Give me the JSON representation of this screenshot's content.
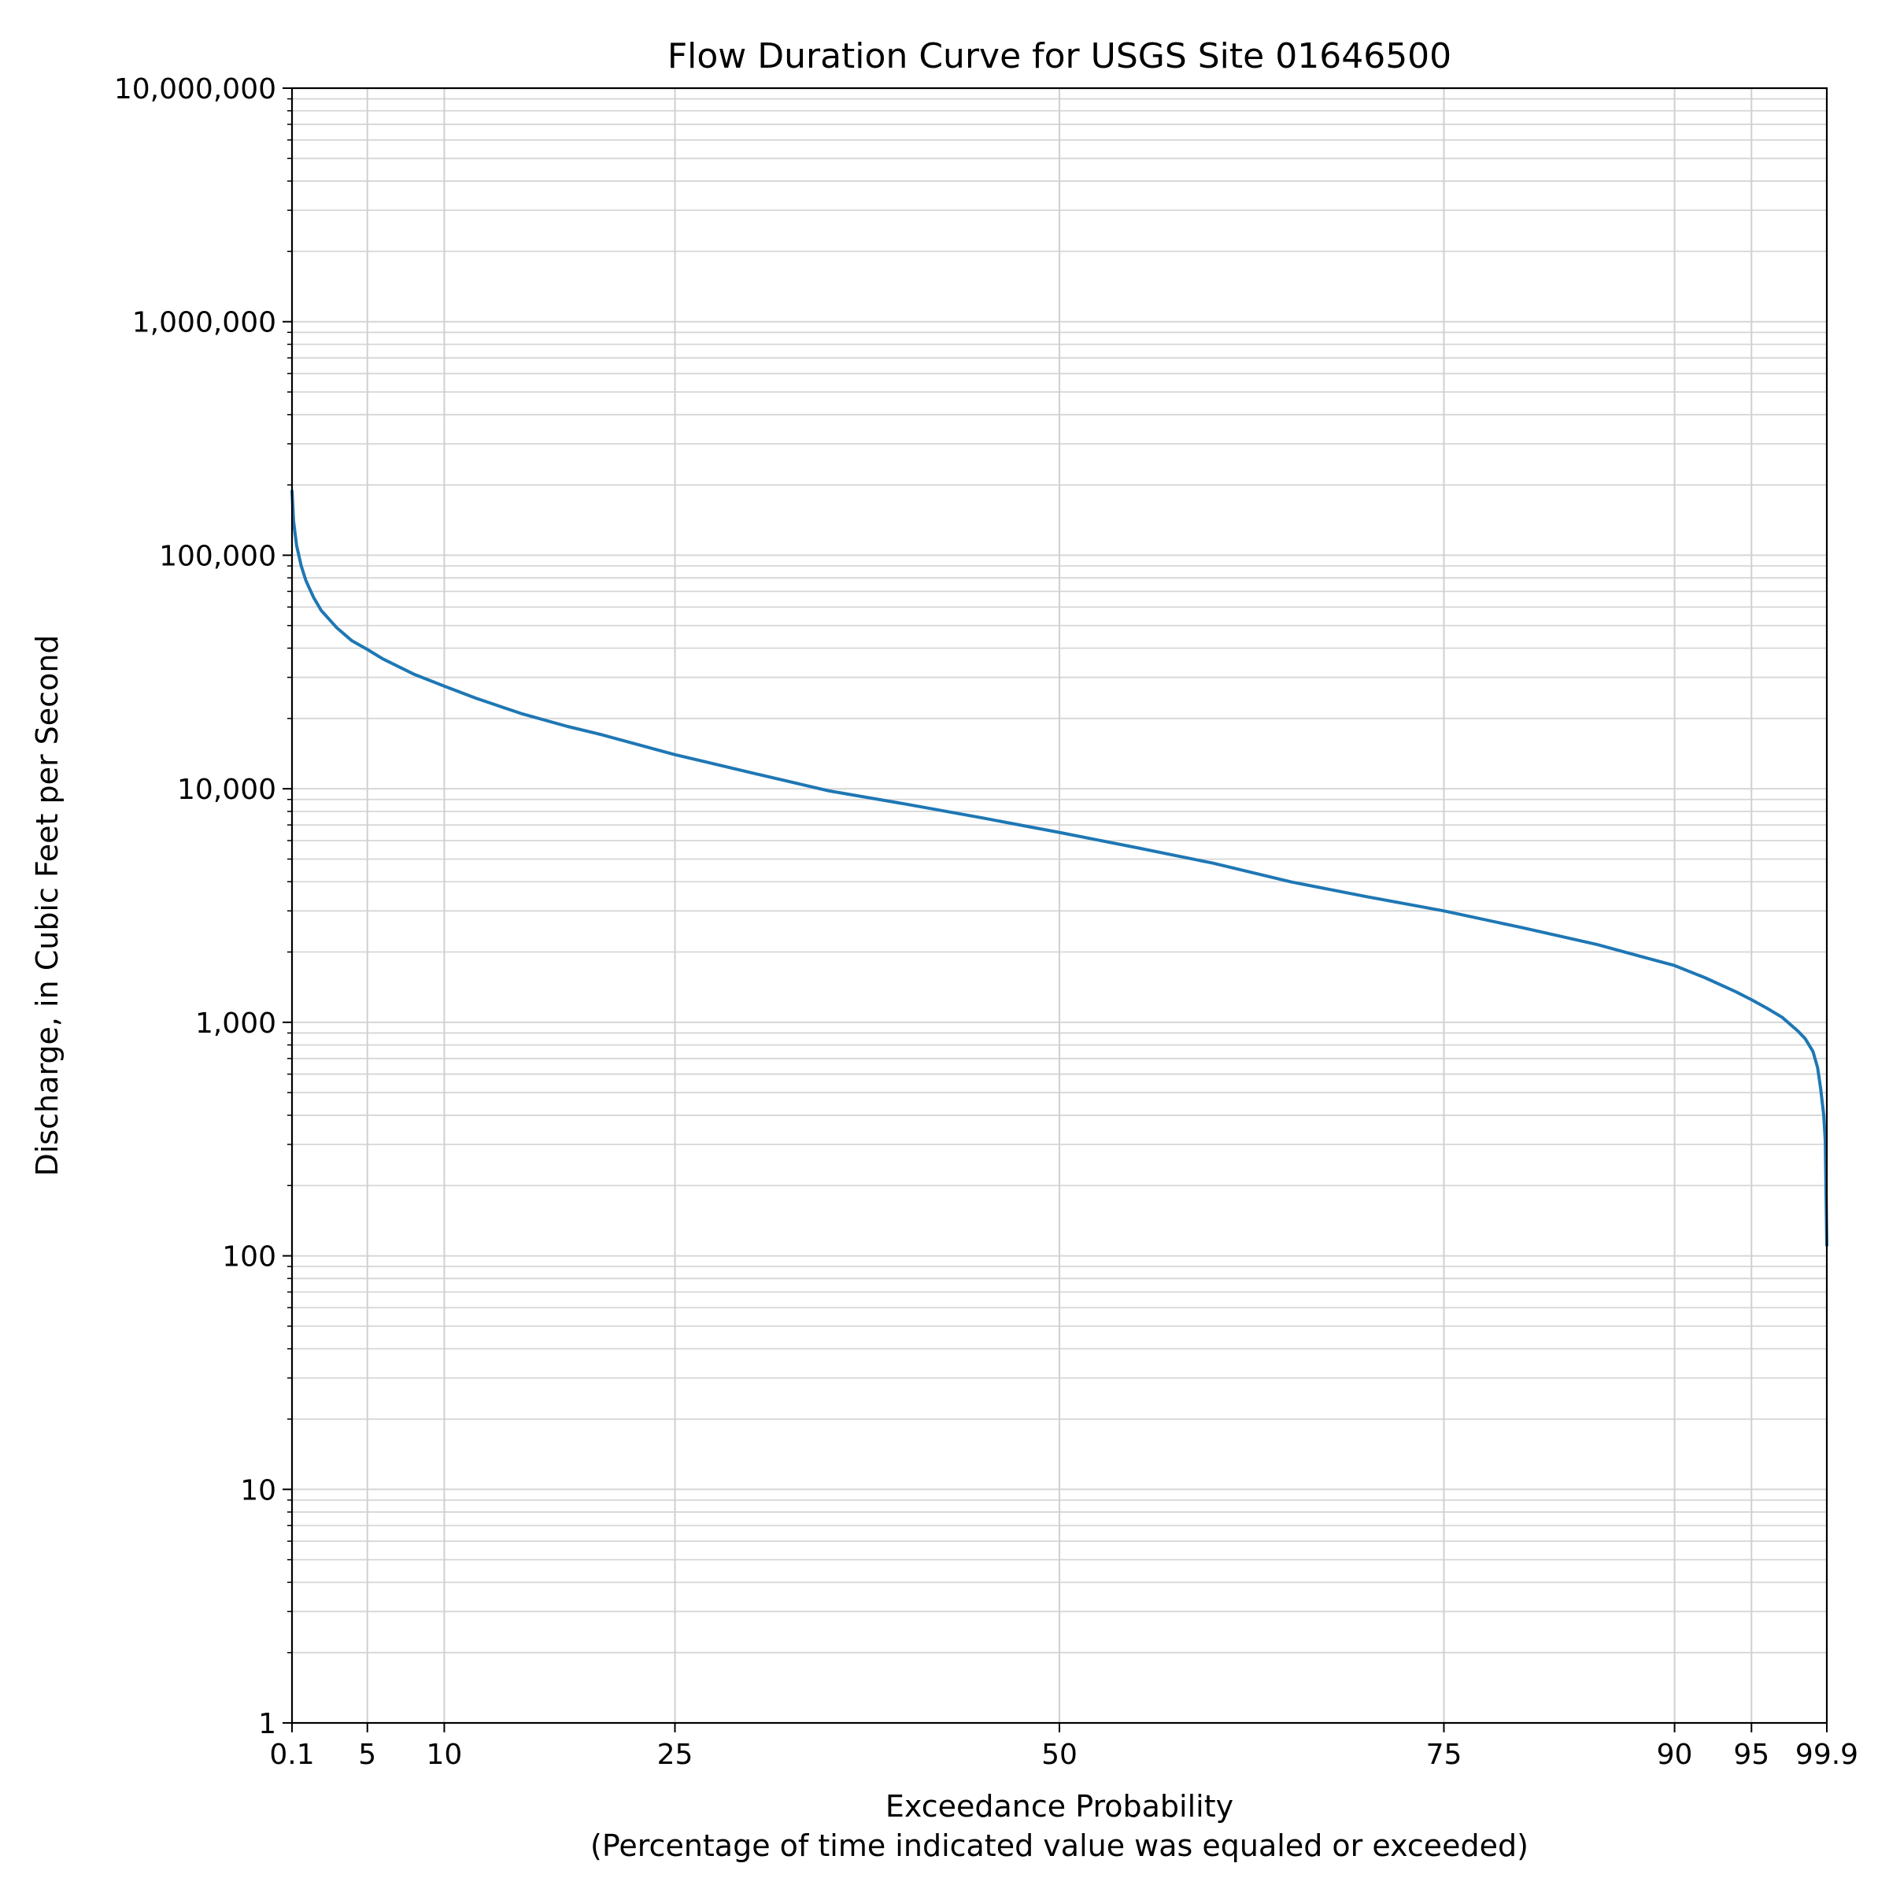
{
  "chart_data": {
    "type": "line",
    "title": "Flow Duration Curve for USGS Site 01646500",
    "xlabel": "Exceedance Probability",
    "xlabel_sub": "(Percentage of time indicated value was equaled or exceeded)",
    "ylabel": "Discharge, in Cubic Feet per Second",
    "x_scale": "linear",
    "y_scale": "log",
    "xlim": [
      0.1,
      99.9
    ],
    "ylim": [
      1,
      10000000
    ],
    "grid": true,
    "x_ticks": [
      0.1,
      5,
      10,
      25,
      50,
      75,
      90,
      95,
      99.9
    ],
    "x_tick_labels": [
      "0.1",
      "5",
      "10",
      "25",
      "50",
      "75",
      "90",
      "95",
      "99.9"
    ],
    "y_ticks": [
      1,
      10,
      100,
      1000,
      10000,
      100000,
      1000000,
      10000000
    ],
    "y_tick_labels": [
      "1",
      "10",
      "100",
      "1,000",
      "10,000",
      "100,000",
      "1,000,000",
      "10,000,000"
    ],
    "line_color": "#1f77b4",
    "series": [
      {
        "x": [
          0.1,
          0.2,
          0.4,
          0.7,
          1,
          1.5,
          2,
          3,
          4,
          5,
          6,
          8,
          10,
          12,
          15,
          18,
          20,
          25,
          30,
          35,
          40,
          45,
          50,
          55,
          60,
          65,
          70,
          75,
          80,
          85,
          88,
          90,
          92,
          94,
          95,
          96,
          97,
          98,
          98.5,
          99,
          99.3,
          99.5,
          99.7,
          99.8,
          99.9
        ],
        "y": [
          190000,
          140000,
          110000,
          90000,
          78000,
          66000,
          58000,
          49000,
          43000,
          39500,
          36000,
          31000,
          27500,
          24500,
          21000,
          18500,
          17200,
          14000,
          11700,
          9800,
          8600,
          7500,
          6500,
          5600,
          4800,
          4000,
          3450,
          3000,
          2550,
          2150,
          1900,
          1750,
          1550,
          1350,
          1250,
          1150,
          1050,
          920,
          850,
          750,
          640,
          520,
          400,
          310,
          110
        ]
      }
    ]
  }
}
